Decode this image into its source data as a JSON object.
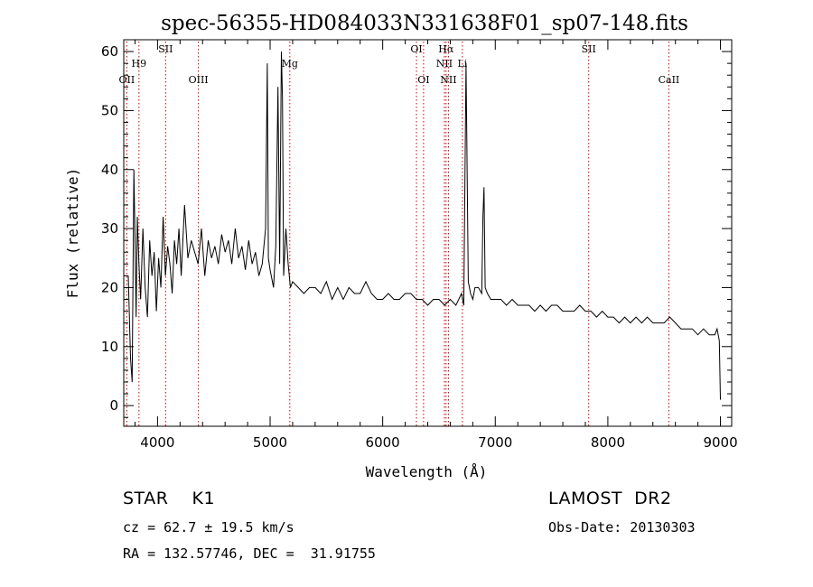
{
  "chart_data": {
    "type": "line",
    "title": "spec-56355-HD084033N331638F01_sp07-148.fits",
    "xlabel": "Wavelength (Å)",
    "ylabel": "Flux (relative)",
    "xlim": [
      3700,
      9100
    ],
    "ylim": [
      -3.5,
      62
    ],
    "x_ticks": [
      4000,
      5000,
      6000,
      7000,
      8000,
      9000
    ],
    "y_ticks": [
      0,
      10,
      20,
      30,
      40,
      50,
      60
    ],
    "line_color": "#000000",
    "marker_color": "#cc0000",
    "series": [
      {
        "x": [
          3740,
          3760,
          3775,
          3790,
          3800,
          3810,
          3820,
          3835,
          3850,
          3870,
          3890,
          3910,
          3930,
          3950,
          3970,
          3990,
          4010,
          4030,
          4050,
          4070,
          4090,
          4110,
          4130,
          4150,
          4170,
          4190,
          4210,
          4240,
          4270,
          4300,
          4330,
          4360,
          4390,
          4420,
          4450,
          4480,
          4510,
          4540,
          4570,
          4600,
          4630,
          4660,
          4690,
          4720,
          4750,
          4780,
          4810,
          4840,
          4870,
          4900,
          4930,
          4960,
          4975,
          4985,
          5000,
          5010,
          5030,
          5050,
          5070,
          5085,
          5100,
          5110,
          5120,
          5140,
          5160,
          5180,
          5200,
          5250,
          5300,
          5350,
          5400,
          5450,
          5500,
          5550,
          5600,
          5650,
          5700,
          5750,
          5800,
          5850,
          5900,
          5950,
          6000,
          6050,
          6100,
          6150,
          6200,
          6250,
          6300,
          6350,
          6400,
          6450,
          6500,
          6550,
          6600,
          6650,
          6700,
          6720,
          6740,
          6760,
          6780,
          6800,
          6820,
          6850,
          6880,
          6890,
          6900,
          6910,
          6930,
          6960,
          7000,
          7050,
          7100,
          7150,
          7200,
          7250,
          7300,
          7350,
          7400,
          7450,
          7500,
          7550,
          7600,
          7650,
          7700,
          7750,
          7800,
          7850,
          7900,
          7950,
          8000,
          8050,
          8100,
          8150,
          8200,
          8250,
          8300,
          8350,
          8400,
          8450,
          8500,
          8550,
          8600,
          8650,
          8700,
          8750,
          8800,
          8850,
          8900,
          8950,
          8970,
          8990,
          9000
        ],
        "y": [
          22,
          8,
          4,
          40,
          28,
          15,
          32,
          24,
          18,
          30,
          20,
          15,
          28,
          22,
          26,
          16,
          25,
          20,
          32,
          22,
          27,
          24,
          19,
          28,
          24,
          30,
          22,
          34,
          25,
          28,
          26,
          24,
          30,
          22,
          28,
          25,
          27,
          24,
          29,
          26,
          28,
          24,
          30,
          25,
          27,
          23,
          28,
          24,
          26,
          22,
          24,
          30,
          58,
          25,
          23,
          22,
          20,
          27,
          54,
          24,
          60,
          52,
          22,
          30,
          24,
          20,
          21,
          20,
          19,
          20,
          20,
          19,
          21,
          18,
          20,
          18,
          20,
          19,
          19,
          21,
          19,
          18,
          18,
          19,
          18,
          18,
          19,
          19,
          18,
          18,
          17,
          18,
          18,
          17,
          18,
          17,
          19,
          17,
          58,
          21,
          19,
          18,
          20,
          20,
          19,
          32,
          37,
          20,
          19,
          18,
          18,
          18,
          17,
          18,
          17,
          17,
          17,
          16,
          17,
          16,
          17,
          17,
          16,
          16,
          16,
          17,
          16,
          16,
          15,
          16,
          15,
          15,
          14,
          15,
          14,
          15,
          14,
          15,
          14,
          14,
          14,
          15,
          14,
          13,
          13,
          13,
          12,
          13,
          12,
          12,
          13,
          11,
          1
        ]
      }
    ],
    "line_markers": [
      {
        "label": "OII",
        "x": 3727
      },
      {
        "label": "H9",
        "x": 3835
      },
      {
        "label": "SII",
        "x": 4072
      },
      {
        "label": "OIII",
        "x": 4363
      },
      {
        "label": "Mg",
        "x": 5175
      },
      {
        "label": "OI",
        "x": 6300
      },
      {
        "label": "OI",
        "x": 6363
      },
      {
        "label": "NII",
        "x": 6548
      },
      {
        "label": "Hα",
        "x": 6563
      },
      {
        "label": "NII",
        "x": 6584
      },
      {
        "label": "Li",
        "x": 6708
      },
      {
        "label": "SII",
        "x": 7830
      },
      {
        "label": "CaII",
        "x": 8542
      }
    ]
  },
  "info": {
    "class_label": "STAR    K1",
    "survey": "LAMOST  DR2",
    "cz": "cz = 62.7 ± 19.5 km/s",
    "obs_date": "Obs-Date: 20130303",
    "coords": "RA = 132.57746, DEC =  31.91755"
  }
}
